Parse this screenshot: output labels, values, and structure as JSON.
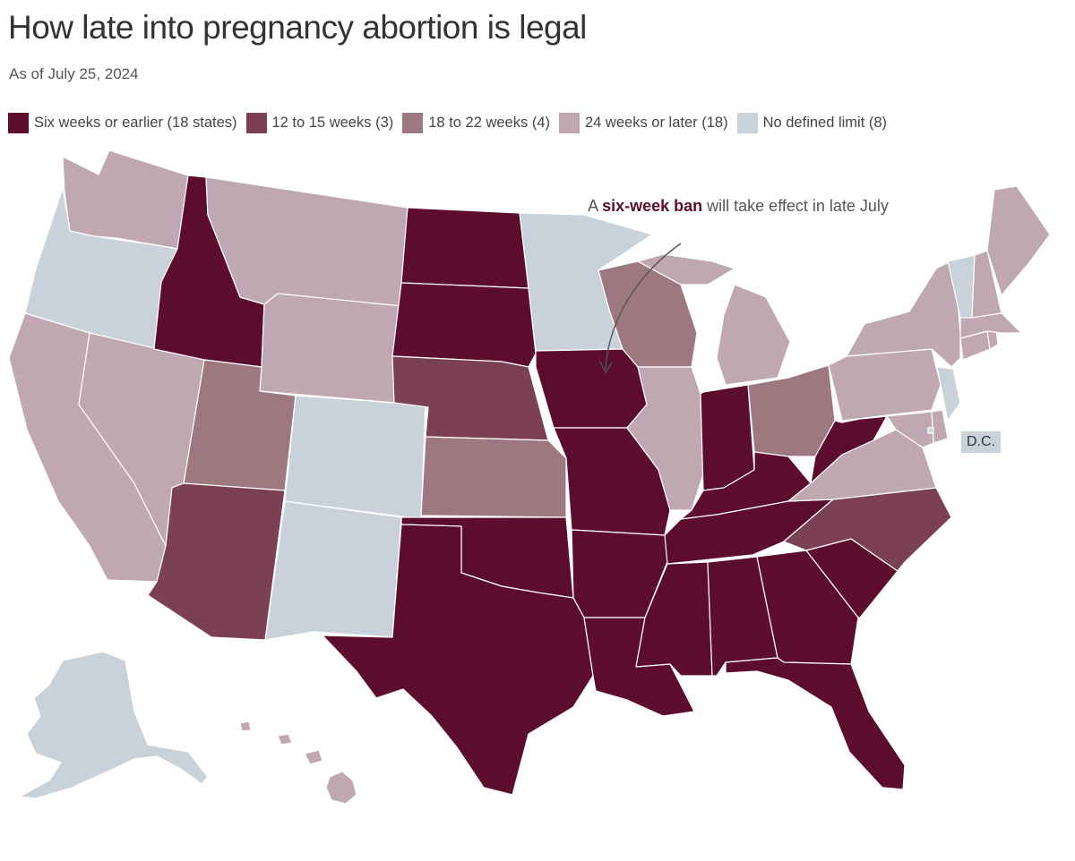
{
  "header": {
    "title": "How late into pregnancy abortion is legal",
    "subtitle": "As of July 25, 2024"
  },
  "legend": [
    {
      "key": "six",
      "label": "Six weeks or earlier (18 states)",
      "color": "#5c0d2e"
    },
    {
      "key": "twelve",
      "label": "12 to 15 weeks (3)",
      "color": "#7c4055"
    },
    {
      "key": "eighteen",
      "label": "18 to 22 weeks (4)",
      "color": "#9e7880"
    },
    {
      "key": "twentyfour",
      "label": "24 weeks or later (18)",
      "color": "#bfa8b1"
    },
    {
      "key": "none",
      "label": "No defined limit (8)",
      "color": "#c9d2da"
    }
  ],
  "annotation": {
    "prefix": "A ",
    "highlight": "six-week ban",
    "suffix": " will take effect in late July",
    "target_state": "IA"
  },
  "dc_label": "D.C.",
  "states": {
    "WA": "twentyfour",
    "OR": "none",
    "CA": "twentyfour",
    "NV": "twentyfour",
    "ID": "six",
    "MT": "twentyfour",
    "WY": "twentyfour",
    "UT": "eighteen",
    "AZ": "twelve",
    "CO": "none",
    "NM": "none",
    "ND": "six",
    "SD": "six",
    "NE": "twelve",
    "KS": "eighteen",
    "OK": "six",
    "TX": "six",
    "MN": "none",
    "IA": "six",
    "MO": "six",
    "AR": "six",
    "LA": "six",
    "WI": "eighteen",
    "IL": "twentyfour",
    "MI": "twentyfour",
    "IN": "six",
    "OH": "eighteen",
    "KY": "six",
    "TN": "six",
    "MS": "six",
    "AL": "six",
    "GA": "six",
    "FL": "six",
    "SC": "six",
    "NC": "twelve",
    "VA": "twentyfour",
    "WV": "six",
    "PA": "twentyfour",
    "NY": "twentyfour",
    "VT": "none",
    "NH": "twentyfour",
    "ME": "twentyfour",
    "MA": "twentyfour",
    "RI": "twentyfour",
    "CT": "twentyfour",
    "NJ": "none",
    "DE": "twentyfour",
    "MD": "twentyfour",
    "DC": "none",
    "AK": "none",
    "HI": "twentyfour"
  }
}
